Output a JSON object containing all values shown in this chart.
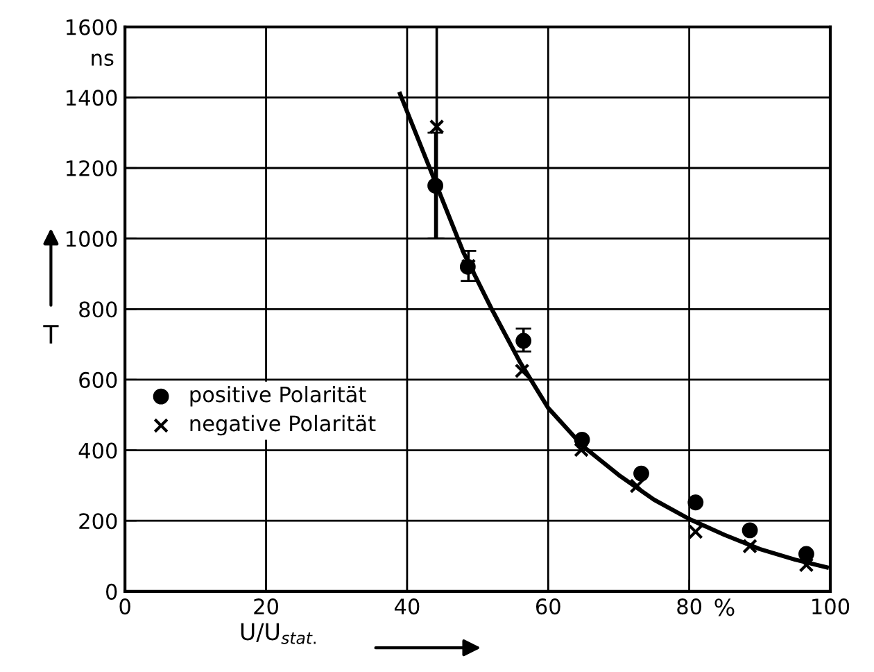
{
  "chart_data": {
    "type": "scatter",
    "xlabel": "U/U$_{stat.}$",
    "ylabel": "T",
    "xlim": [
      0,
      100
    ],
    "ylim": [
      0,
      1600
    ],
    "xticks": [
      0,
      20,
      40,
      60,
      80,
      100
    ],
    "yticks": [
      0,
      200,
      400,
      600,
      800,
      1000,
      1200,
      1400,
      1600
    ],
    "grid": true,
    "legend": "left",
    "annotations": [
      "ns",
      "%"
    ],
    "series": [
      {
        "name": "positive Polarität",
        "marker": "circle",
        "color": "#000000",
        "x": [
          44.0,
          48.6,
          56.5,
          64.8,
          73.2,
          80.9,
          88.6,
          96.6
        ],
        "values": [
          1150,
          920,
          710,
          430,
          334,
          252,
          173,
          106
        ],
        "errors": [
          [
            1000,
            1300
          ],
          null,
          [
            680,
            745
          ],
          null,
          null,
          null,
          null,
          null
        ]
      },
      {
        "name": "negative Polarität",
        "marker": "cross",
        "color": "#000000",
        "x": [
          44.2,
          48.7,
          56.3,
          64.7,
          72.6,
          80.9,
          88.6,
          96.6
        ],
        "values": [
          1317,
          922,
          625,
          401,
          299,
          169,
          128,
          75
        ],
        "errors": [
          [
            1000,
            1600
          ],
          [
            880,
            965
          ],
          null,
          null,
          null,
          null,
          null,
          null
        ]
      },
      {
        "type": "line",
        "color": "#000000",
        "line_style": "solid",
        "x": [
          39,
          44,
          48,
          52,
          56,
          60,
          65,
          70,
          75,
          80,
          85,
          90,
          95,
          99.5
        ],
        "values": [
          1410,
          1160,
          960,
          800,
          650,
          520,
          410,
          330,
          260,
          205,
          160,
          120,
          90,
          68
        ]
      }
    ]
  }
}
